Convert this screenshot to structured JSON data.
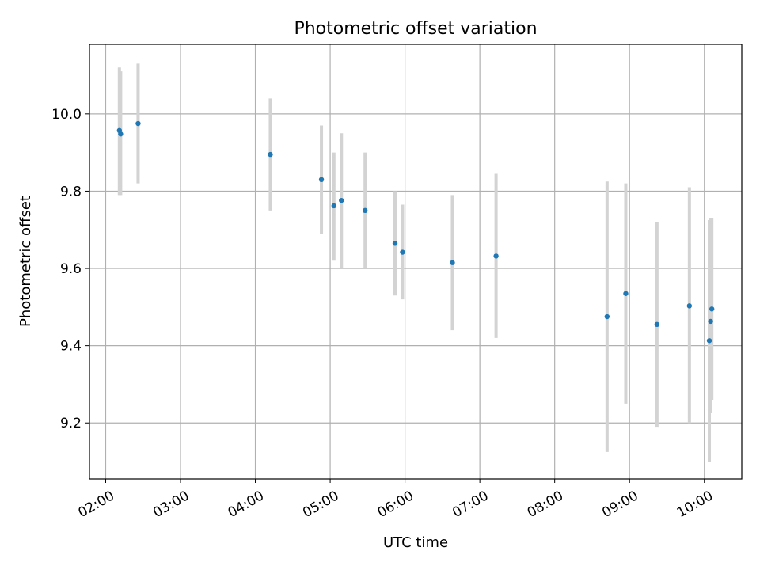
{
  "chart_data": {
    "type": "scatter",
    "title": "Photometric offset variation",
    "xlabel": "UTC time",
    "ylabel": "Photometric offset",
    "x_tick_labels": [
      "02:00",
      "03:00",
      "04:00",
      "05:00",
      "06:00",
      "07:00",
      "08:00",
      "09:00",
      "10:00"
    ],
    "y_ticks": [
      9.2,
      9.4,
      9.6,
      9.8,
      10.0
    ],
    "y_tick_labels": [
      "9.2",
      "9.4",
      "9.6",
      "9.8",
      "10.0"
    ],
    "xlim": [
      "01:47",
      "10:30"
    ],
    "ylim": [
      9.055,
      10.18
    ],
    "grid": true,
    "marker_color": "#1f77b4",
    "errorbar_color": "#d3d3d3",
    "points": [
      {
        "x": "02:11",
        "y": 9.957,
        "err_low": 9.79,
        "err_high": 10.12
      },
      {
        "x": "02:12",
        "y": 9.948,
        "err_low": 9.79,
        "err_high": 10.11
      },
      {
        "x": "02:26",
        "y": 9.975,
        "err_low": 9.82,
        "err_high": 10.13
      },
      {
        "x": "04:12",
        "y": 9.895,
        "err_low": 9.75,
        "err_high": 10.04
      },
      {
        "x": "04:53",
        "y": 9.83,
        "err_low": 9.69,
        "err_high": 9.97
      },
      {
        "x": "05:03",
        "y": 9.762,
        "err_low": 9.62,
        "err_high": 9.9
      },
      {
        "x": "05:09",
        "y": 9.776,
        "err_low": 9.6,
        "err_high": 9.95
      },
      {
        "x": "05:28",
        "y": 9.75,
        "err_low": 9.6,
        "err_high": 9.9
      },
      {
        "x": "05:52",
        "y": 9.665,
        "err_low": 9.53,
        "err_high": 9.8
      },
      {
        "x": "05:58",
        "y": 9.642,
        "err_low": 9.52,
        "err_high": 9.765
      },
      {
        "x": "06:38",
        "y": 9.615,
        "err_low": 9.44,
        "err_high": 9.79
      },
      {
        "x": "07:13",
        "y": 9.632,
        "err_low": 9.42,
        "err_high": 9.845
      },
      {
        "x": "08:42",
        "y": 9.475,
        "err_low": 9.125,
        "err_high": 9.825
      },
      {
        "x": "08:57",
        "y": 9.535,
        "err_low": 9.25,
        "err_high": 9.82
      },
      {
        "x": "09:22",
        "y": 9.455,
        "err_low": 9.19,
        "err_high": 9.72
      },
      {
        "x": "09:48",
        "y": 9.503,
        "err_low": 9.2,
        "err_high": 9.81
      },
      {
        "x": "10:04",
        "y": 9.413,
        "err_low": 9.1,
        "err_high": 9.725
      },
      {
        "x": "10:05",
        "y": 9.463,
        "err_low": 9.225,
        "err_high": 9.73
      },
      {
        "x": "10:06",
        "y": 9.495,
        "err_low": 9.26,
        "err_high": 9.73
      }
    ]
  }
}
